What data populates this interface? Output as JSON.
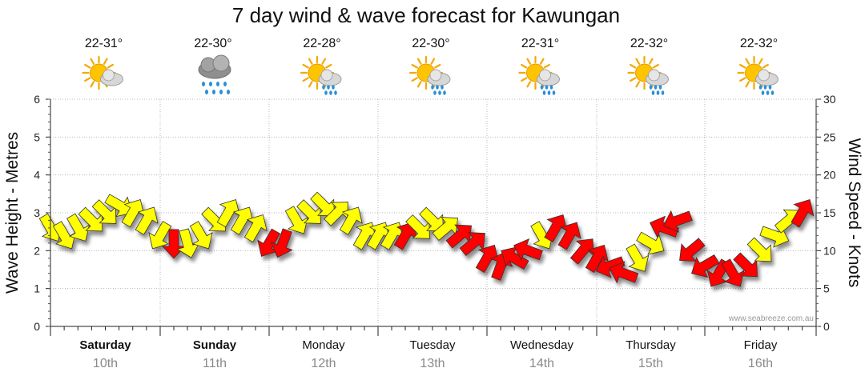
{
  "chart_data": {
    "type": "line",
    "title": "7 day wind & wave forecast for Kawungan",
    "ylabel": "Wave Height - Metres",
    "y2label": "Wind Speed - Knots",
    "ylim": [
      0,
      6
    ],
    "y2lim": [
      0,
      30
    ],
    "yticks": [
      0,
      1,
      2,
      3,
      4,
      5,
      6
    ],
    "y2ticks": [
      0,
      5,
      10,
      15,
      20,
      25,
      30
    ],
    "grid": true,
    "watermark": "www.seabreeze.com.au",
    "colors": {
      "wind_low": "#ffff00",
      "wind_high": "#ff0000",
      "grid": "#999999"
    },
    "days": [
      {
        "name": "Saturday",
        "date": "10th",
        "bold": true,
        "temp": "22-31°",
        "icon": "partly-cloudy-icon"
      },
      {
        "name": "Sunday",
        "date": "11th",
        "bold": true,
        "temp": "22-30°",
        "icon": "rain-cloud-icon"
      },
      {
        "name": "Monday",
        "date": "12th",
        "bold": false,
        "temp": "22-28°",
        "icon": "sun-showers-icon"
      },
      {
        "name": "Tuesday",
        "date": "13th",
        "bold": false,
        "temp": "22-30°",
        "icon": "sun-showers-icon"
      },
      {
        "name": "Wednesday",
        "date": "14th",
        "bold": false,
        "temp": "22-31°",
        "icon": "sun-showers-icon"
      },
      {
        "name": "Thursday",
        "date": "15th",
        "bold": false,
        "temp": "22-32°",
        "icon": "sun-showers-icon"
      },
      {
        "name": "Friday",
        "date": "16th",
        "bold": false,
        "temp": "22-32°",
        "icon": "sun-showers-icon"
      }
    ],
    "series": [
      {
        "name": "Wind (knots, arrow points downwind)",
        "x_hours": [
          0,
          3,
          6,
          9,
          12,
          15,
          18,
          21,
          24,
          27,
          30,
          33,
          36,
          39,
          42,
          45,
          48,
          51,
          54,
          57,
          60,
          63,
          66,
          69,
          72,
          75,
          78,
          81,
          84,
          87,
          90,
          93,
          96,
          99,
          102,
          105,
          108,
          111,
          114,
          117,
          120,
          123,
          126,
          129,
          132,
          135,
          138,
          141,
          144,
          147,
          150,
          153,
          156,
          159,
          162,
          165
        ],
        "speed": [
          13,
          12,
          13,
          14,
          15,
          16,
          15,
          14,
          12,
          11,
          11,
          12,
          14,
          15,
          14,
          13,
          11,
          11,
          14,
          15,
          16,
          15,
          14,
          12,
          12,
          12,
          12,
          13,
          14,
          13,
          12,
          11,
          9,
          8,
          9,
          10,
          12,
          13,
          12,
          10,
          9,
          8,
          7,
          9,
          11,
          13,
          14,
          10,
          8,
          7,
          7,
          8,
          10,
          12,
          14,
          15
        ],
        "dir_deg": [
          60,
          60,
          60,
          45,
          45,
          30,
          300,
          300,
          120,
          90,
          75,
          60,
          45,
          300,
          300,
          300,
          120,
          110,
          60,
          45,
          45,
          315,
          300,
          300,
          300,
          300,
          300,
          45,
          45,
          320,
          320,
          320,
          300,
          290,
          210,
          200,
          60,
          300,
          300,
          310,
          300,
          160,
          200,
          60,
          30,
          200,
          160,
          140,
          150,
          120,
          60,
          45,
          45,
          20,
          320,
          300
        ],
        "gusty": [
          false,
          false,
          false,
          false,
          false,
          false,
          false,
          false,
          false,
          true,
          false,
          false,
          false,
          false,
          false,
          false,
          true,
          true,
          false,
          false,
          false,
          false,
          false,
          false,
          false,
          false,
          true,
          false,
          false,
          false,
          true,
          true,
          true,
          true,
          true,
          true,
          false,
          true,
          true,
          true,
          true,
          true,
          true,
          false,
          false,
          true,
          true,
          true,
          true,
          true,
          true,
          true,
          false,
          false,
          false,
          true
        ]
      }
    ]
  }
}
